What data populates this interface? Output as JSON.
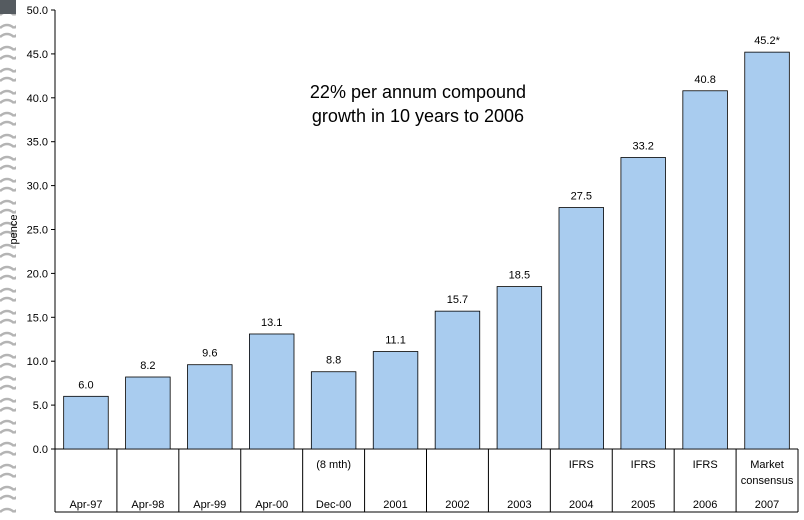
{
  "chart_data": {
    "type": "bar",
    "title": "",
    "xlabel": "",
    "ylabel": "pence",
    "ylim": [
      0,
      50
    ],
    "y_ticks": [
      "0.0",
      "5.0",
      "10.0",
      "15.0",
      "20.0",
      "25.0",
      "30.0",
      "35.0",
      "40.0",
      "45.0",
      "50.0"
    ],
    "grid": false,
    "bar_color": "#a9ccef",
    "bar_stroke": "#000000",
    "categories": [
      "Apr-97",
      "Apr-98",
      "Apr-99",
      "Apr-00",
      "Dec-00",
      "2001",
      "2002",
      "2003",
      "2004",
      "2005",
      "2006",
      "2007"
    ],
    "category_notes": [
      "",
      "",
      "",
      "",
      "(8 mth)",
      "",
      "",
      "",
      "IFRS",
      "IFRS",
      "IFRS",
      "Market consensus"
    ],
    "values": [
      6.0,
      8.2,
      9.6,
      13.1,
      8.8,
      11.1,
      15.7,
      18.5,
      27.5,
      33.2,
      40.8,
      45.2
    ],
    "value_labels": [
      "6.0",
      "8.2",
      "9.6",
      "13.1",
      "8.8",
      "11.1",
      "15.7",
      "18.5",
      "27.5",
      "33.2",
      "40.8",
      "45.2*"
    ],
    "annotation": [
      "22% per annum compound",
      "growth in 10 years to 2006"
    ]
  }
}
